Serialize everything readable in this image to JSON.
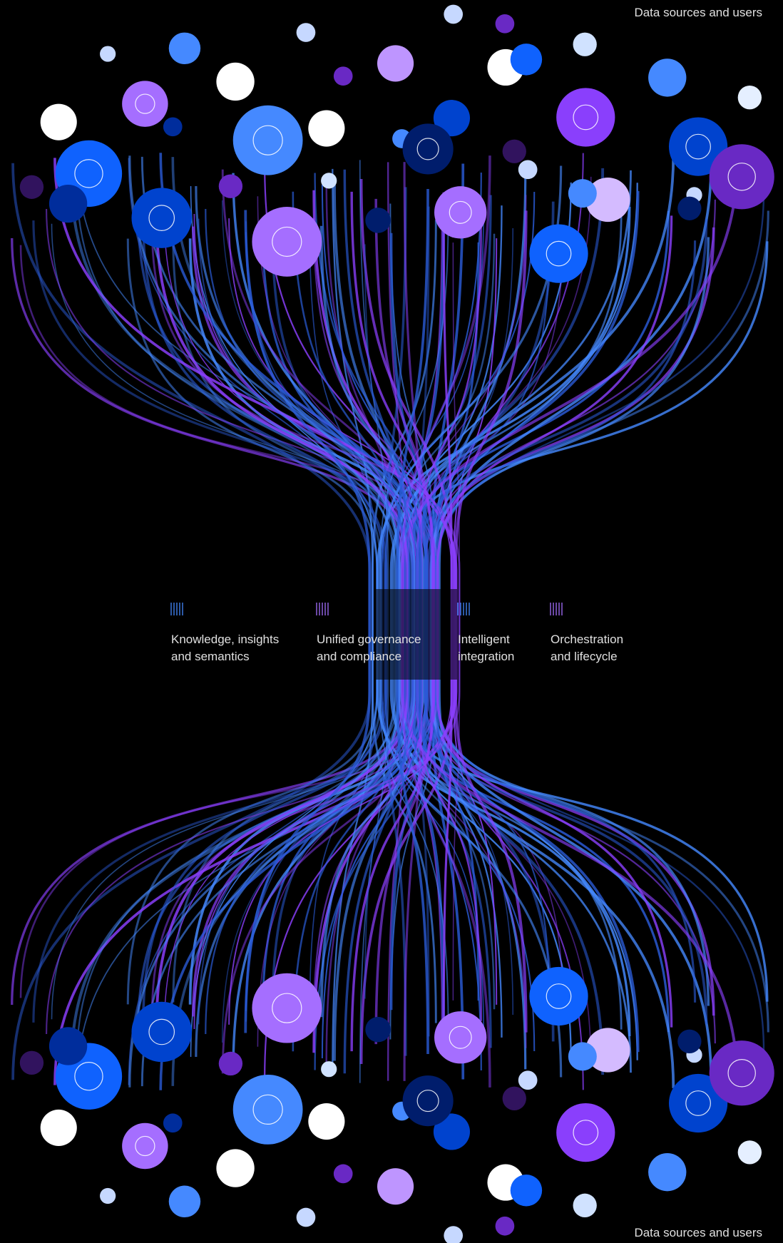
{
  "header": {
    "top_label": "Data sources and users",
    "bottom_label": "Data sources and users"
  },
  "capabilities": [
    {
      "lines": [
        "Knowledge, insights",
        "and semantics"
      ]
    },
    {
      "lines": [
        "Unified governance",
        "and compliance"
      ]
    },
    {
      "lines": [
        "Intelligent",
        "integration"
      ]
    },
    {
      "lines": [
        "Orchestration",
        "and lifecycle"
      ]
    }
  ]
}
